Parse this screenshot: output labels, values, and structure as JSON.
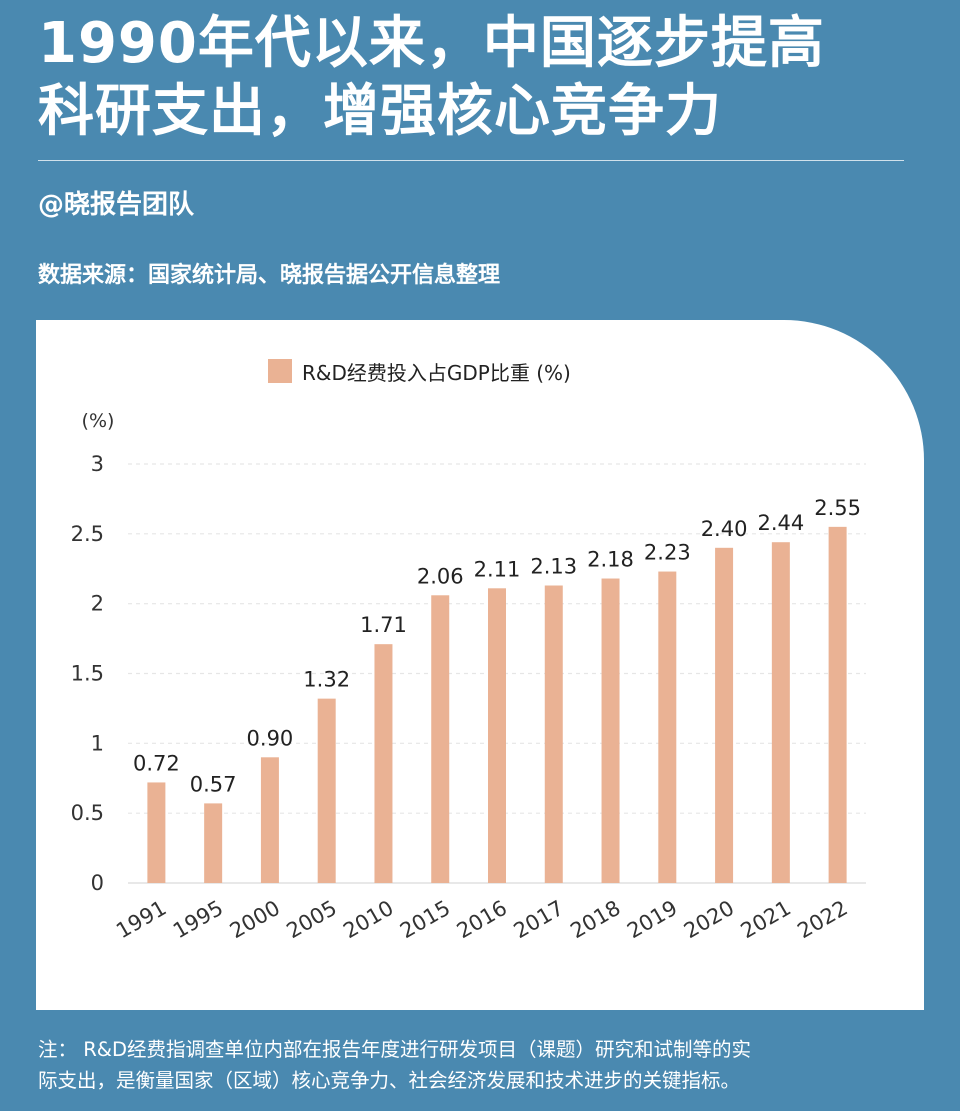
{
  "header": {
    "title_line1": "1990年代以来，中国逐步提高",
    "title_line2": "科研支出，增强核心竞争力",
    "author": "@晓报告团队",
    "source": "数据来源：国家统计局、晓报告据公开信息整理"
  },
  "footer": {
    "note_line1": "注：  R&D经费指调查单位内部在报告年度进行研发项目（课题）研究和试制等的实",
    "note_line2": "际支出，是衡量国家（区域）核心竞争力、社会经济发展和技术进步的关键指标。"
  },
  "colors": {
    "background": "#4a89b0",
    "bar": "#eab294",
    "text": "#222222"
  },
  "chart_data": {
    "type": "bar",
    "categories": [
      "1991",
      "1995",
      "2000",
      "2005",
      "2010",
      "2015",
      "2016",
      "2017",
      "2018",
      "2019",
      "2020",
      "2021",
      "2022"
    ],
    "series": [
      {
        "name": "R&D经费投入占GDP比重 (%)",
        "values": [
          0.72,
          0.57,
          0.9,
          1.32,
          1.71,
          2.06,
          2.11,
          2.13,
          2.18,
          2.23,
          2.4,
          2.44,
          2.55
        ]
      }
    ],
    "data_labels": [
      "0.72",
      "0.57",
      "0.90",
      "1.32",
      "1.71",
      "2.06",
      "2.11",
      "2.13",
      "2.18",
      "2.23",
      "2.40",
      "2.44",
      "2.55"
    ],
    "ylabel": "(%)",
    "yticks": [
      "0",
      "0.5",
      "1",
      "1.5",
      "2",
      "2.5",
      "3"
    ],
    "ylim": [
      0,
      3
    ],
    "grid": true,
    "legend_position": "top-center"
  }
}
